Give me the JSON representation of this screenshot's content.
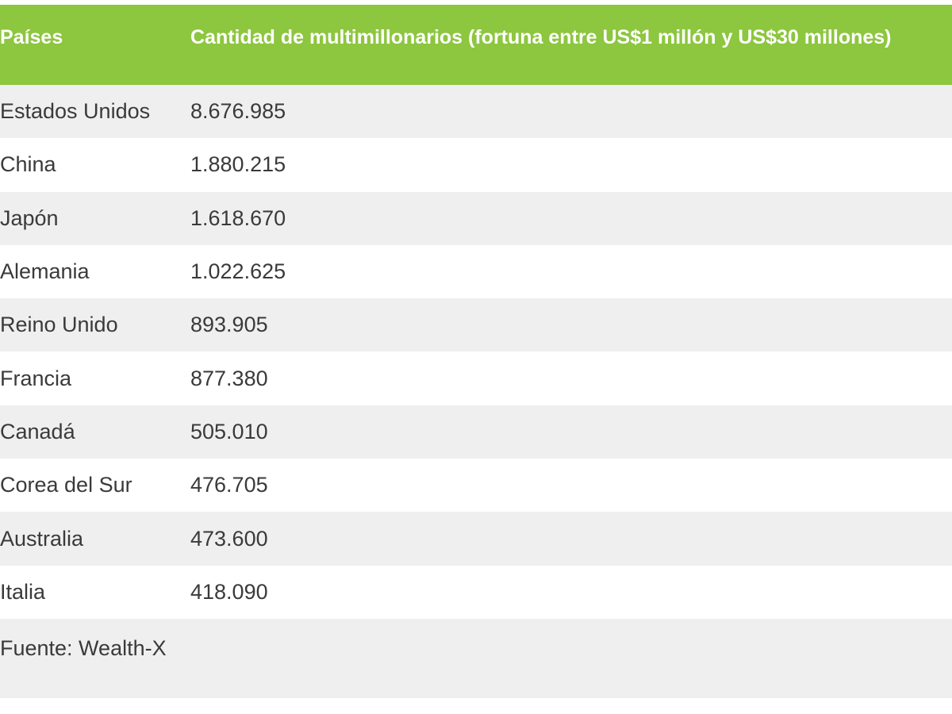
{
  "table": {
    "headers": {
      "country": "Países",
      "count": "Cantidad de multimillonarios (fortuna entre US$1 millón y US$30 millones)"
    },
    "rows": [
      {
        "country": "Estados Unidos",
        "count": "8.676.985"
      },
      {
        "country": "China",
        "count": "1.880.215"
      },
      {
        "country": "Japón",
        "count": "1.618.670"
      },
      {
        "country": "Alemania",
        "count": "1.022.625"
      },
      {
        "country": "Reino Unido",
        "count": "893.905"
      },
      {
        "country": "Francia",
        "count": "877.380"
      },
      {
        "country": "Canadá",
        "count": "505.010"
      },
      {
        "country": "Corea del Sur",
        "count": "476.705"
      },
      {
        "country": "Australia",
        "count": "473.600"
      },
      {
        "country": "Italia",
        "count": "418.090"
      }
    ],
    "source": "Fuente: Wealth-X",
    "colors": {
      "header_bg": "#8dc63f",
      "header_text": "#ffffff",
      "row_alt_bg": "#efefef",
      "text": "#3a3a3a"
    }
  }
}
